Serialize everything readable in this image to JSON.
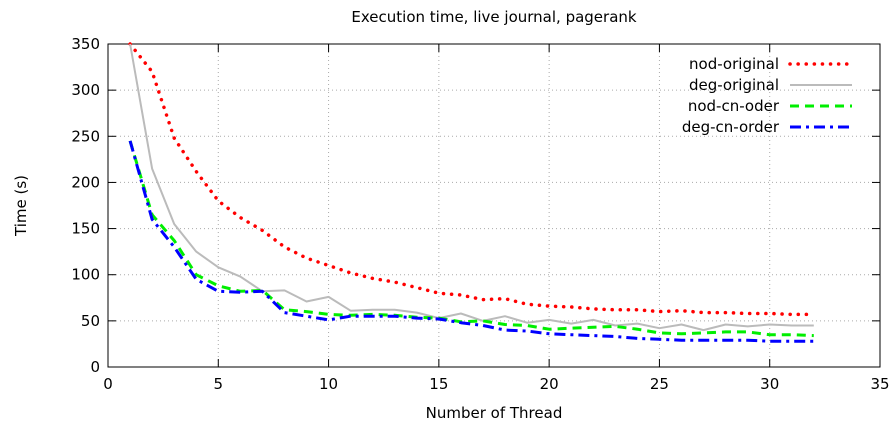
{
  "chart_data": {
    "type": "line",
    "title": "Execution time, live journal, pagerank",
    "xlabel": "Number of Thread",
    "ylabel": "Time (s)",
    "xlim": [
      0,
      35
    ],
    "ylim": [
      0,
      350
    ],
    "xticks": [
      0,
      5,
      10,
      15,
      20,
      25,
      30,
      35
    ],
    "yticks": [
      0,
      50,
      100,
      150,
      200,
      250,
      300,
      350
    ],
    "grid": true,
    "legend_position": "top-right",
    "x": [
      1,
      2,
      3,
      4,
      5,
      6,
      7,
      8,
      9,
      10,
      11,
      12,
      13,
      14,
      15,
      16,
      17,
      18,
      19,
      20,
      21,
      22,
      23,
      24,
      25,
      26,
      27,
      28,
      29,
      30,
      31,
      32
    ],
    "series": [
      {
        "name": "nod-original",
        "color": "#ff0000",
        "style": "dotted",
        "values": [
          350,
          320,
          248,
          212,
          180,
          162,
          148,
          130,
          118,
          110,
          102,
          96,
          92,
          86,
          80,
          78,
          73,
          74,
          68,
          66,
          65,
          63,
          62,
          62,
          60,
          61,
          59,
          59,
          58,
          58,
          57,
          57
        ]
      },
      {
        "name": "deg-original",
        "color": "#bbbbbb",
        "style": "solid",
        "values": [
          350,
          215,
          155,
          125,
          108,
          98,
          82,
          83,
          71,
          76,
          61,
          62,
          62,
          59,
          53,
          58,
          50,
          55,
          48,
          51,
          47,
          51,
          45,
          47,
          42,
          46,
          40,
          46,
          44,
          46,
          45,
          45
        ]
      },
      {
        "name": "nod-cn-oder",
        "color": "#00ee00",
        "style": "dashed",
        "values": [
          245,
          165,
          137,
          100,
          88,
          82,
          83,
          62,
          60,
          57,
          56,
          57,
          56,
          54,
          53,
          49,
          50,
          46,
          45,
          41,
          42,
          43,
          44,
          41,
          37,
          36,
          37,
          38,
          38,
          35,
          35,
          34
        ]
      },
      {
        "name": "deg-cn-order",
        "color": "#0000ff",
        "style": "dashdot",
        "values": [
          245,
          160,
          130,
          95,
          82,
          81,
          82,
          59,
          55,
          51,
          55,
          55,
          55,
          53,
          52,
          48,
          45,
          40,
          39,
          36,
          35,
          34,
          33,
          31,
          30,
          29,
          29,
          29,
          29,
          28,
          28,
          28
        ]
      }
    ]
  }
}
